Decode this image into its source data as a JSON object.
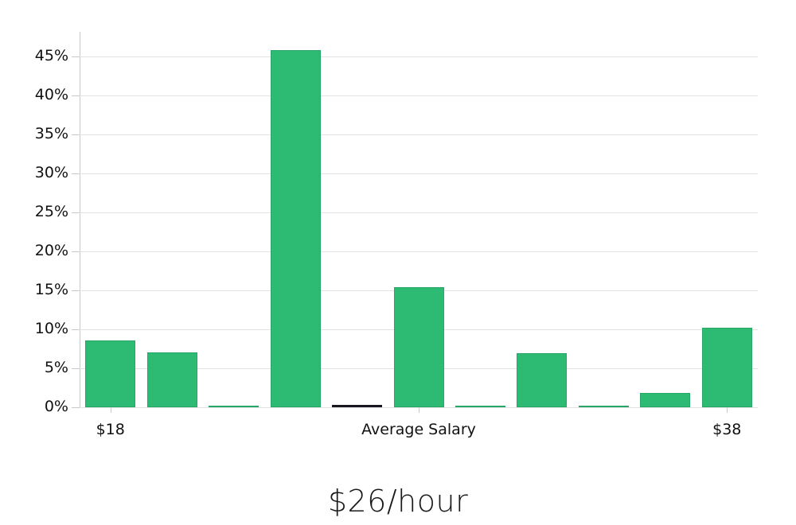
{
  "chart_data": {
    "type": "bar",
    "title": "$26/hour",
    "values": [
      8.6,
      7.0,
      0.15,
      45.9,
      0.35,
      15.4,
      0.15,
      6.9,
      0.15,
      1.8,
      10.2
    ],
    "highlight_index": 4,
    "x_tick_labels": [
      {
        "slot": 0,
        "label": "$18"
      },
      {
        "slot": 5,
        "label": "Average Salary"
      },
      {
        "slot": 10,
        "label": "$38"
      }
    ],
    "y_ticks": [
      {
        "v": 0,
        "label": "0%"
      },
      {
        "v": 5,
        "label": "5%"
      },
      {
        "v": 10,
        "label": "10%"
      },
      {
        "v": 15,
        "label": "15%"
      },
      {
        "v": 20,
        "label": "20%"
      },
      {
        "v": 25,
        "label": "25%"
      },
      {
        "v": 30,
        "label": "30%"
      },
      {
        "v": 35,
        "label": "35%"
      },
      {
        "v": 40,
        "label": "40%"
      },
      {
        "v": 45,
        "label": "45%"
      }
    ],
    "ylim": [
      0,
      48.2
    ],
    "grid": true,
    "legend": "none",
    "colors": {
      "bar_fill": "#2dbb74",
      "bar_edge": "#28a667",
      "highlight_fill": "#17171f",
      "highlight_edge": "#17171f",
      "gridline": "#e2e2e2",
      "axis": "#c9c9c9",
      "text": "#111111"
    }
  }
}
